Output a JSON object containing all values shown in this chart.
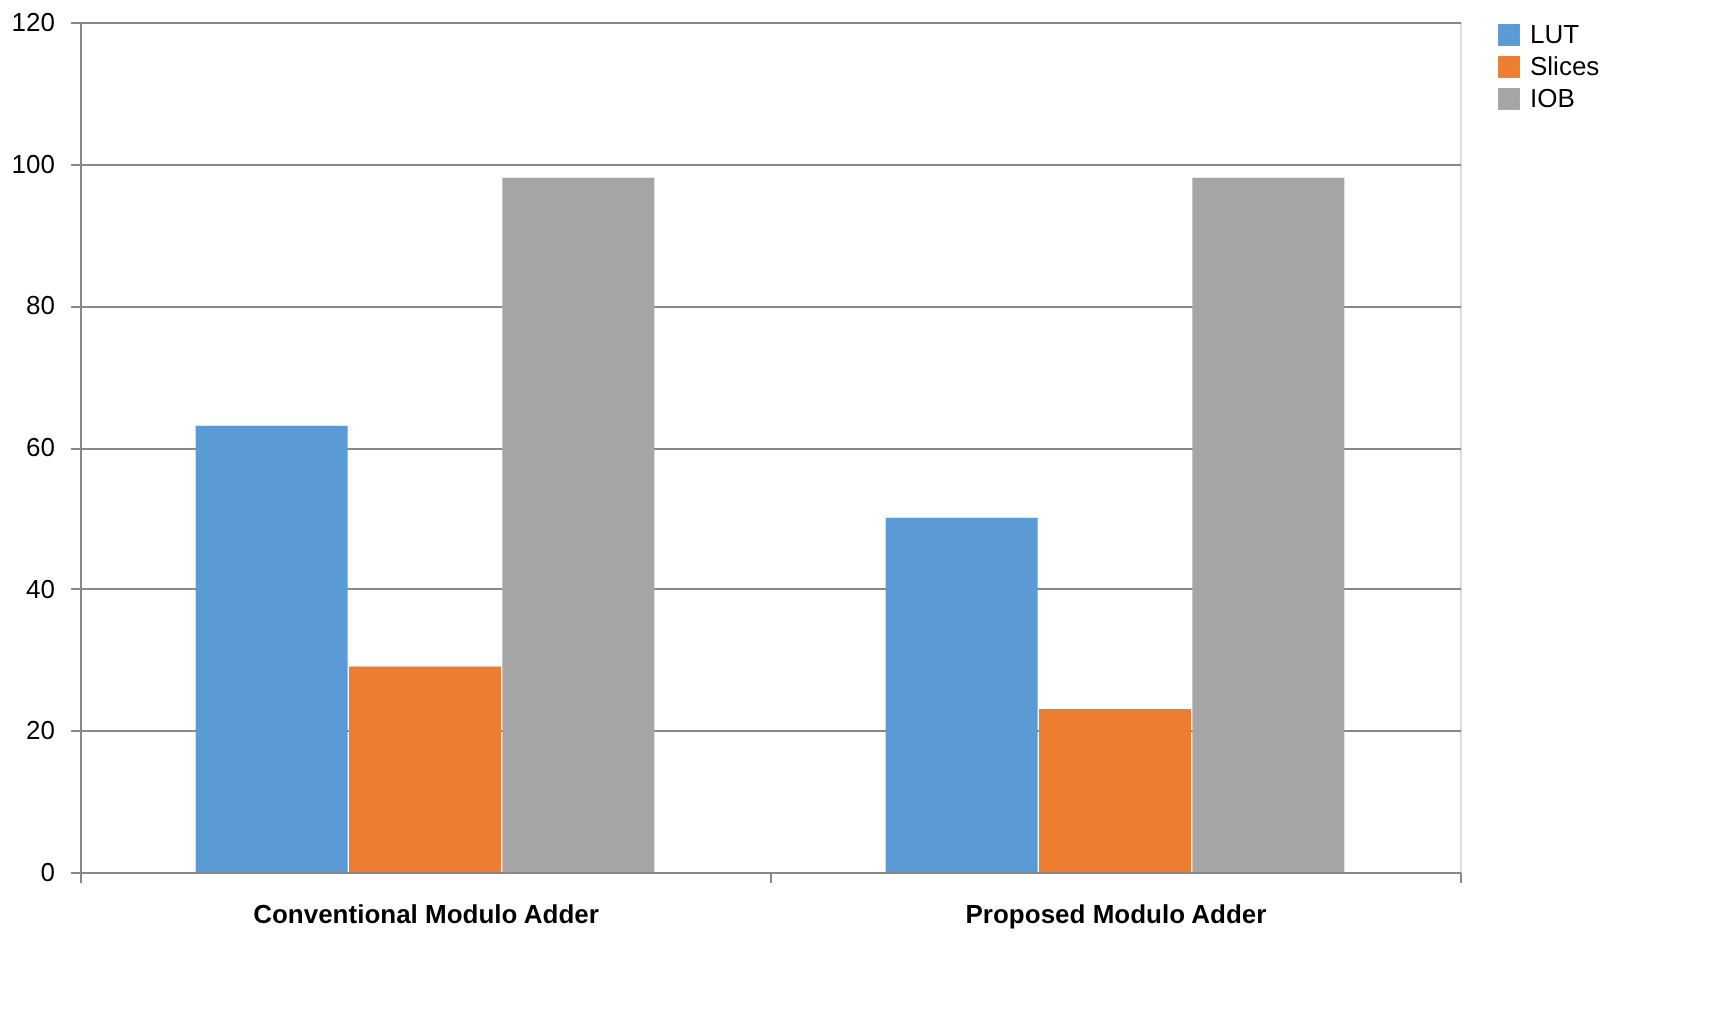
{
  "chart_data": {
    "type": "bar",
    "categories": [
      "Conventional Modulo Adder",
      "Proposed Modulo Adder"
    ],
    "series": [
      {
        "name": "LUT",
        "color": "#5b9bd5",
        "values": [
          63,
          50
        ]
      },
      {
        "name": "Slices",
        "color": "#ed7d31",
        "values": [
          29,
          23
        ]
      },
      {
        "name": "IOB",
        "color": "#a5a5a5",
        "values": [
          98,
          98
        ]
      }
    ],
    "ylim": [
      0,
      120
    ],
    "yticks": [
      0,
      20,
      40,
      60,
      80,
      100,
      120
    ],
    "grid": "y",
    "legend": "right"
  }
}
